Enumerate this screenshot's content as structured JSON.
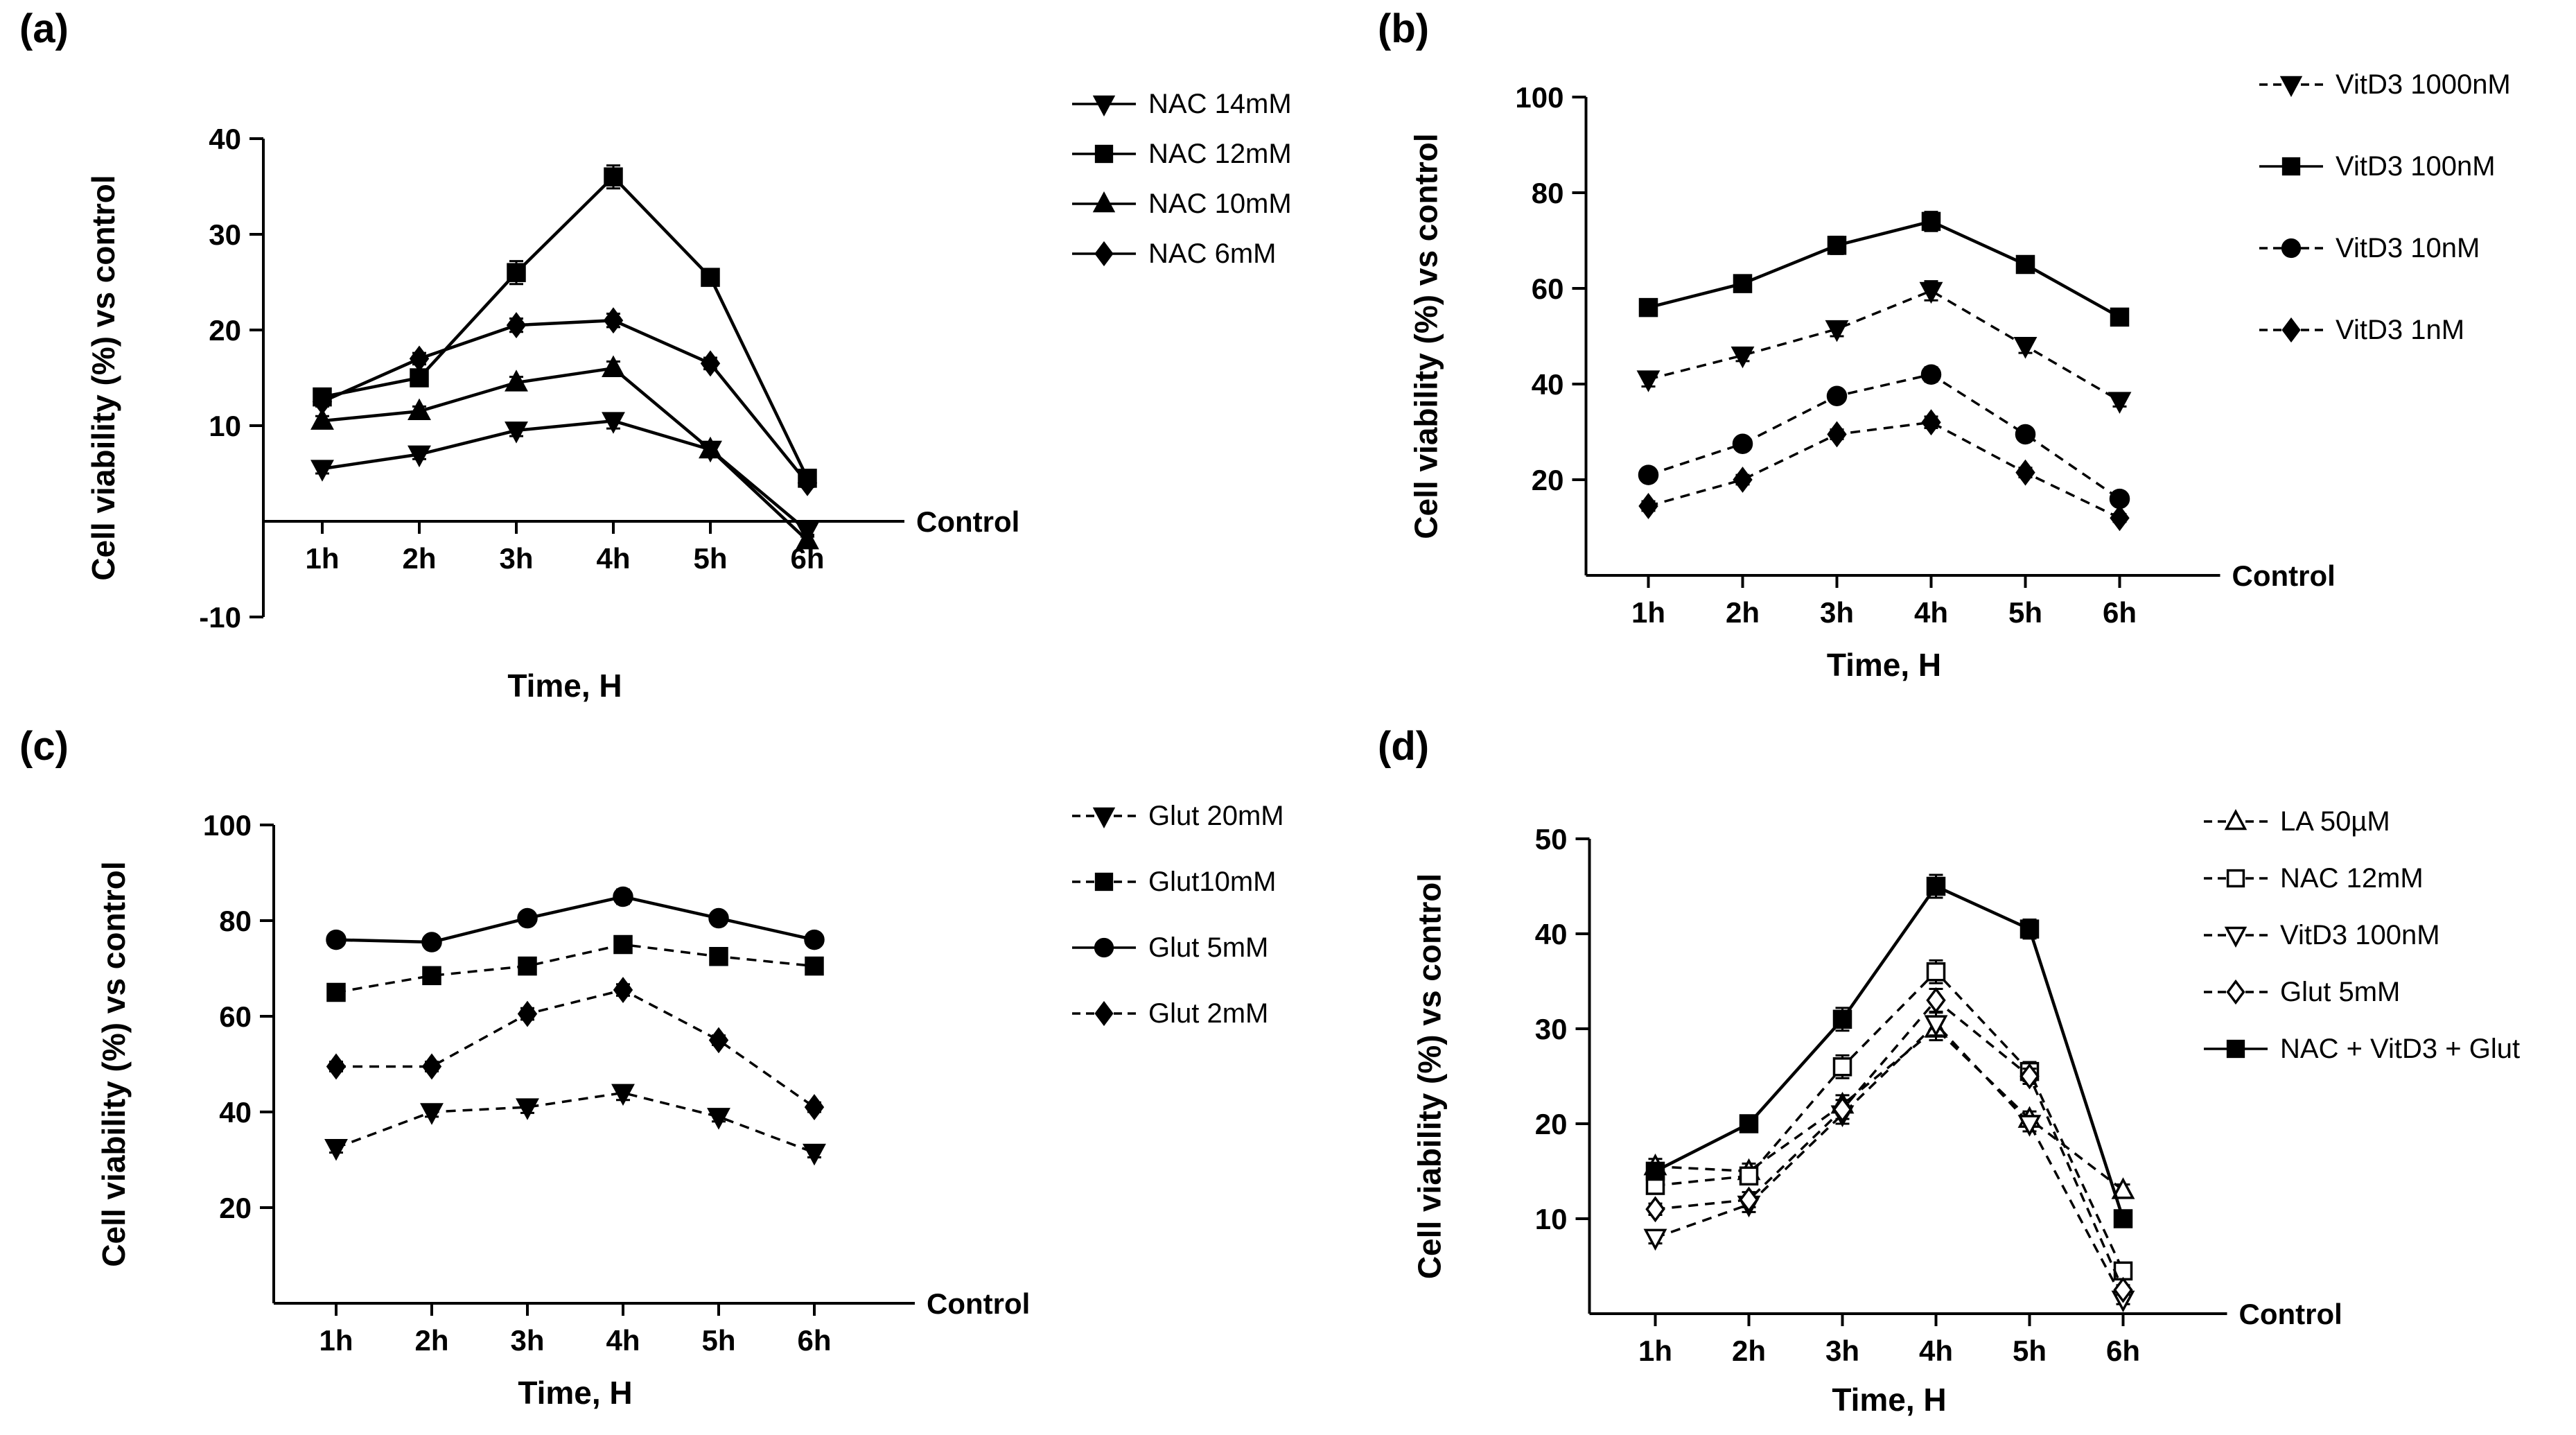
{
  "figure": {
    "background_color": "#ffffff",
    "ink_color": "#000000"
  },
  "chart_data": [
    {
      "panel_label": "(a)",
      "type": "line",
      "title": "",
      "xlabel": "Time, H",
      "ylabel": "Cell viability (%) vs control",
      "control_label": "Control",
      "categories": [
        "1h",
        "2h",
        "3h",
        "4h",
        "5h",
        "6h"
      ],
      "ylim": [
        -10,
        40
      ],
      "yticks": [
        -10,
        10,
        20,
        30,
        40
      ],
      "grid": false,
      "legend_position": "right",
      "series": [
        {
          "name": "NAC 14mM",
          "marker": "triangle-down",
          "fill": "filled",
          "line": "solid",
          "values": [
            5.5,
            7,
            9.5,
            10.5,
            7.5,
            -1
          ],
          "err": [
            0.5,
            0.5,
            0.6,
            0.8,
            0.5,
            0.4
          ]
        },
        {
          "name": "NAC 12mM",
          "marker": "square",
          "fill": "filled",
          "line": "solid",
          "values": [
            13,
            15,
            26,
            36,
            25.5,
            4.5
          ],
          "err": [
            0.6,
            0.6,
            1.2,
            1.2,
            0.8,
            0.5
          ]
        },
        {
          "name": "NAC 10mM",
          "marker": "triangle-up",
          "fill": "filled",
          "line": "solid",
          "values": [
            10.5,
            11.5,
            14.5,
            16,
            7.5,
            -2
          ],
          "err": [
            0.5,
            0.5,
            0.6,
            0.7,
            0.5,
            0.4
          ]
        },
        {
          "name": "NAC 6mM",
          "marker": "diamond",
          "fill": "filled",
          "line": "solid",
          "values": [
            12.5,
            17,
            20.5,
            21,
            16.5,
            4
          ],
          "err": [
            0.5,
            0.6,
            0.7,
            0.7,
            0.6,
            0.4
          ]
        }
      ]
    },
    {
      "panel_label": "(b)",
      "type": "line",
      "title": "",
      "xlabel": "Time, H",
      "ylabel": "Cell viability (%) vs control",
      "control_label": "Control",
      "categories": [
        "1h",
        "2h",
        "3h",
        "4h",
        "5h",
        "6h"
      ],
      "ylim": [
        0,
        100
      ],
      "yticks": [
        20,
        40,
        60,
        80,
        100
      ],
      "grid": false,
      "legend_position": "right",
      "series": [
        {
          "name": "VitD3 1000nM",
          "marker": "triangle-down",
          "fill": "filled",
          "line": "dashed",
          "values": [
            41,
            46,
            51.5,
            59.5,
            48,
            36.5
          ],
          "err": [
            1.5,
            1.2,
            1.5,
            2,
            1.5,
            1.2
          ]
        },
        {
          "name": "VitD3 100nM",
          "marker": "square",
          "fill": "filled",
          "line": "solid",
          "values": [
            56,
            61,
            69,
            74,
            65,
            54
          ],
          "err": [
            1.5,
            1.5,
            1.8,
            2,
            1.5,
            1.5
          ]
        },
        {
          "name": "VitD3 10nM",
          "marker": "circle",
          "fill": "filled",
          "line": "dashed",
          "values": [
            21,
            27.5,
            37.5,
            42,
            29.5,
            16
          ],
          "err": [
            1,
            1,
            1.2,
            1.5,
            1.2,
            1
          ]
        },
        {
          "name": "VitD3 1nM",
          "marker": "diamond",
          "fill": "filled",
          "line": "dashed",
          "values": [
            14.5,
            20,
            29.5,
            32,
            21.5,
            12
          ],
          "err": [
            1,
            1,
            1,
            1.2,
            1,
            0.8
          ]
        }
      ]
    },
    {
      "panel_label": "(c)",
      "type": "line",
      "title": "",
      "xlabel": "Time, H",
      "ylabel": "Cell viability (%) vs control",
      "control_label": "Control",
      "categories": [
        "1h",
        "2h",
        "3h",
        "4h",
        "5h",
        "6h"
      ],
      "ylim": [
        0,
        100
      ],
      "yticks": [
        20,
        40,
        60,
        80,
        100
      ],
      "grid": false,
      "legend_position": "right",
      "series": [
        {
          "name": "Glut 20mM",
          "marker": "triangle-down",
          "fill": "filled",
          "line": "dashed",
          "values": [
            32.5,
            40,
            41,
            44,
            39,
            31.5
          ],
          "err": [
            1,
            1,
            1.2,
            1.5,
            1,
            1
          ]
        },
        {
          "name": "Glut10mM",
          "marker": "square",
          "fill": "filled",
          "line": "dashed",
          "values": [
            65,
            68.5,
            70.5,
            75,
            72.5,
            70.5
          ],
          "err": [
            1.2,
            1,
            1,
            1.2,
            1,
            1
          ]
        },
        {
          "name": "Glut 5mM",
          "marker": "circle",
          "fill": "filled",
          "line": "solid",
          "values": [
            76,
            75.5,
            80.5,
            85,
            80.5,
            76
          ],
          "err": [
            1.2,
            1,
            1.2,
            1.5,
            1.2,
            1
          ]
        },
        {
          "name": "Glut 2mM",
          "marker": "diamond",
          "fill": "filled",
          "line": "dashed",
          "values": [
            49.5,
            49.5,
            60.5,
            65.5,
            55,
            41
          ],
          "err": [
            1,
            1,
            1.2,
            1.2,
            1,
            1
          ]
        }
      ]
    },
    {
      "panel_label": "(d)",
      "type": "line",
      "title": "",
      "xlabel": "Time, H",
      "ylabel": "Cell viability (%) vs control",
      "control_label": "Control",
      "categories": [
        "1h",
        "2h",
        "3h",
        "4h",
        "5h",
        "6h"
      ],
      "ylim": [
        0,
        50
      ],
      "yticks": [
        10,
        20,
        30,
        40,
        50
      ],
      "grid": false,
      "legend_position": "right",
      "series": [
        {
          "name": "LA 50µM",
          "marker": "triangle-up",
          "fill": "open",
          "line": "dashed",
          "values": [
            15.5,
            15,
            22,
            30,
            20.5,
            13
          ],
          "err": [
            0.8,
            0.8,
            1,
            1.2,
            0.8,
            0.6
          ]
        },
        {
          "name": "NAC 12mM",
          "marker": "square",
          "fill": "open",
          "line": "dashed",
          "values": [
            13.5,
            14.5,
            26,
            36,
            25.5,
            4.5
          ],
          "err": [
            0.8,
            0.8,
            1.2,
            1.2,
            1,
            0.5
          ]
        },
        {
          "name": "VitD3 100nM",
          "marker": "triangle-down",
          "fill": "open",
          "line": "dashed",
          "values": [
            8,
            11.5,
            21,
            30.5,
            20,
            1.5
          ],
          "err": [
            0.6,
            0.8,
            1,
            1.2,
            0.8,
            0.5
          ]
        },
        {
          "name": "Glut 5mM",
          "marker": "diamond",
          "fill": "open",
          "line": "dashed",
          "values": [
            11,
            12,
            21.5,
            33,
            25,
            2.5
          ],
          "err": [
            0.6,
            0.8,
            1,
            1.2,
            0.8,
            0.5
          ]
        },
        {
          "name": "NAC + VitD3 + Glut",
          "marker": "square",
          "fill": "filled",
          "line": "solid",
          "values": [
            15,
            20,
            31,
            45,
            40.5,
            10
          ],
          "err": [
            0.8,
            0.8,
            1.2,
            1.2,
            1,
            0.8
          ]
        }
      ]
    }
  ]
}
